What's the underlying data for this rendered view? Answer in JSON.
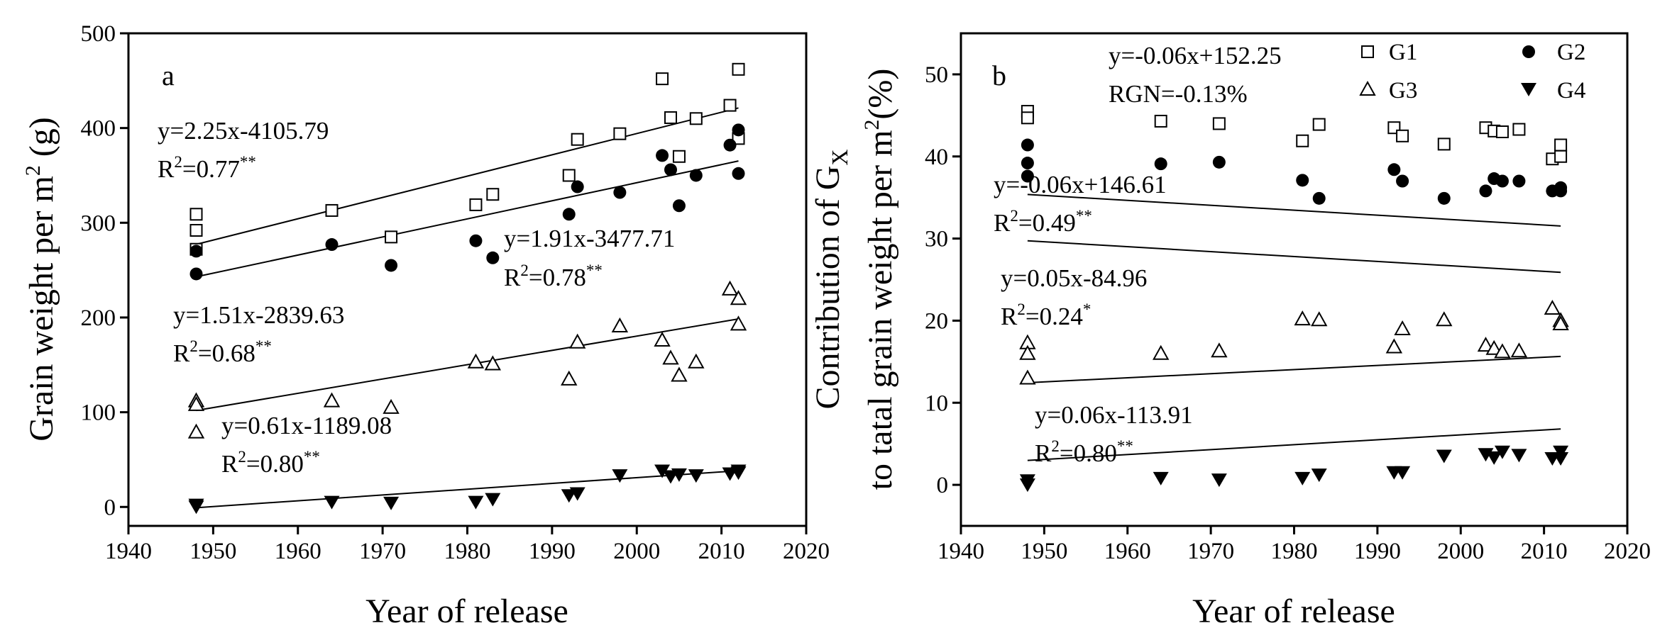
{
  "chart_data": [
    {
      "type": "scatter",
      "panel_label": "a",
      "xlabel": "Year of release",
      "ylabel_pre": "Grain weight per m",
      "ylabel_sup": "2",
      "ylabel_post": " (g)",
      "xlim": [
        1940,
        2020
      ],
      "ylim": [
        -20,
        500
      ],
      "xticks": [
        1940,
        1950,
        1960,
        1970,
        1980,
        1990,
        2000,
        2010,
        2020
      ],
      "yticks": [
        0,
        100,
        200,
        300,
        400,
        500
      ],
      "series": [
        {
          "name": "G1",
          "marker": "open-square",
          "points": [
            [
              1948,
              309
            ],
            [
              1948,
              292
            ],
            [
              1948,
              272
            ],
            [
              1964,
              313
            ],
            [
              1971,
              285
            ],
            [
              1981,
              319
            ],
            [
              1983,
              330
            ],
            [
              1992,
              350
            ],
            [
              1993,
              388
            ],
            [
              1998,
              394
            ],
            [
              2003,
              452
            ],
            [
              2004,
              411
            ],
            [
              2005,
              370
            ],
            [
              2007,
              410
            ],
            [
              2011,
              424
            ],
            [
              2012,
              462
            ],
            [
              2012,
              389
            ]
          ],
          "fit": {
            "slope": 2.25,
            "intercept": -4105.79,
            "x_range": [
              1948,
              2012
            ],
            "equation": "y=2.25x-4105.79",
            "r2_text": "R",
            "r2_sup": "2",
            "r2_value": "=0.77",
            "r2_sig": "**"
          }
        },
        {
          "name": "G2",
          "marker": "filled-circle",
          "points": [
            [
              1948,
              270
            ],
            [
              1948,
              246
            ],
            [
              1964,
              277
            ],
            [
              1971,
              255
            ],
            [
              1981,
              281
            ],
            [
              1983,
              263
            ],
            [
              1992,
              309
            ],
            [
              1993,
              338
            ],
            [
              1998,
              332
            ],
            [
              2003,
              371
            ],
            [
              2004,
              356
            ],
            [
              2005,
              318
            ],
            [
              2007,
              350
            ],
            [
              2011,
              382
            ],
            [
              2012,
              398
            ],
            [
              2012,
              352
            ]
          ],
          "fit": {
            "slope": 1.91,
            "intercept": -3477.71,
            "x_range": [
              1948,
              2012
            ],
            "equation": "y=1.91x-3477.71",
            "r2_text": "R",
            "r2_sup": "2",
            "r2_value": "=0.78",
            "r2_sig": "**"
          }
        },
        {
          "name": "G3",
          "marker": "open-triangle",
          "points": [
            [
              1948,
              112
            ],
            [
              1948,
              108
            ],
            [
              1948,
              79
            ],
            [
              1964,
              112
            ],
            [
              1971,
              105
            ],
            [
              1981,
              153
            ],
            [
              1983,
              151
            ],
            [
              1992,
              135
            ],
            [
              1993,
              174
            ],
            [
              1998,
              191
            ],
            [
              2003,
              176
            ],
            [
              2004,
              157
            ],
            [
              2005,
              139
            ],
            [
              2007,
              153
            ],
            [
              2011,
              230
            ],
            [
              2012,
              220
            ],
            [
              2012,
              193
            ]
          ],
          "fit": {
            "slope": 1.51,
            "intercept": -2839.63,
            "x_range": [
              1948,
              2012
            ],
            "equation": "y=1.51x-2839.63",
            "r2_text": "R",
            "r2_sup": "2",
            "r2_value": "=0.68",
            "r2_sig": "**"
          }
        },
        {
          "name": "G4",
          "marker": "filled-triangle-down",
          "points": [
            [
              1948,
              2
            ],
            [
              1948,
              0
            ],
            [
              1964,
              5
            ],
            [
              1971,
              4
            ],
            [
              1981,
              5
            ],
            [
              1983,
              8
            ],
            [
              1992,
              12
            ],
            [
              1993,
              14
            ],
            [
              1998,
              33
            ],
            [
              2003,
              38
            ],
            [
              2004,
              32
            ],
            [
              2005,
              34
            ],
            [
              2007,
              33
            ],
            [
              2011,
              35
            ],
            [
              2012,
              38
            ],
            [
              2012,
              36
            ]
          ],
          "fit": {
            "slope": 0.61,
            "intercept": -1189.08,
            "x_range": [
              1948,
              2012
            ],
            "equation": "y=0.61x-1189.08",
            "r2_text": "R",
            "r2_sup": "2",
            "r2_value": "=0.80",
            "r2_sig": "**"
          }
        }
      ]
    },
    {
      "type": "scatter",
      "panel_label": "b",
      "xlabel": "Year of release",
      "ylabel_line1_pre": "Contribution of G",
      "ylabel_line1_sub": "X",
      "ylabel_line2_pre": "to tatal grain weight per m",
      "ylabel_line2_sup": "2",
      "ylabel_line2_post": "(%)",
      "xlim": [
        1940,
        2020
      ],
      "ylim": [
        -5,
        55
      ],
      "xticks": [
        1940,
        1950,
        1960,
        1970,
        1980,
        1990,
        2000,
        2010,
        2020
      ],
      "yticks": [
        0,
        10,
        20,
        30,
        40,
        50
      ],
      "legend": [
        {
          "label": "G1",
          "marker": "open-square"
        },
        {
          "label": "G2",
          "marker": "filled-circle"
        },
        {
          "label": "G3",
          "marker": "open-triangle"
        },
        {
          "label": "G4",
          "marker": "filled-triangle-down"
        }
      ],
      "series": [
        {
          "name": "G1",
          "marker": "open-square",
          "points": [
            [
              1948,
              45.5
            ],
            [
              1948,
              44.7
            ],
            [
              1964,
              44.3
            ],
            [
              1971,
              44.0
            ],
            [
              1981,
              41.9
            ],
            [
              1983,
              43.9
            ],
            [
              1992,
              43.5
            ],
            [
              1993,
              42.5
            ],
            [
              1998,
              41.5
            ],
            [
              2003,
              43.5
            ],
            [
              2004,
              43.1
            ],
            [
              2005,
              43.0
            ],
            [
              2007,
              43.3
            ],
            [
              2011,
              39.7
            ],
            [
              2012,
              41.4
            ],
            [
              2012,
              40.0
            ]
          ],
          "fit": {
            "slope": -0.06,
            "intercept": 152.25,
            "x_range": [
              1948,
              2012
            ],
            "equation": "y=-0.06x+152.25",
            "extra_text": "RGN=-0.13%"
          }
        },
        {
          "name": "G2",
          "marker": "filled-circle",
          "points": [
            [
              1948,
              41.4
            ],
            [
              1948,
              39.2
            ],
            [
              1948,
              37.6
            ],
            [
              1964,
              39.1
            ],
            [
              1971,
              39.3
            ],
            [
              1981,
              37.1
            ],
            [
              1983,
              34.9
            ],
            [
              1992,
              38.4
            ],
            [
              1993,
              37.0
            ],
            [
              1998,
              34.9
            ],
            [
              2003,
              35.8
            ],
            [
              2004,
              37.3
            ],
            [
              2005,
              37.0
            ],
            [
              2007,
              37.0
            ],
            [
              2011,
              35.8
            ],
            [
              2012,
              36.2
            ],
            [
              2012,
              35.8
            ]
          ],
          "fit": {
            "slope": -0.06,
            "intercept": 146.61,
            "x_range": [
              1948,
              2012
            ],
            "equation": "y=-0.06x+146.61",
            "r2_text": "R",
            "r2_sup": "2",
            "r2_value": "=0.49",
            "r2_sig": "**"
          }
        },
        {
          "name": "G3",
          "marker": "open-triangle",
          "points": [
            [
              1948,
              17.3
            ],
            [
              1948,
              16.0
            ],
            [
              1948,
              13.0
            ],
            [
              1964,
              16.0
            ],
            [
              1971,
              16.3
            ],
            [
              1981,
              20.2
            ],
            [
              1983,
              20.1
            ],
            [
              1992,
              16.8
            ],
            [
              1993,
              19.0
            ],
            [
              1998,
              20.1
            ],
            [
              2003,
              17.0
            ],
            [
              2004,
              16.6
            ],
            [
              2005,
              16.2
            ],
            [
              2007,
              16.3
            ],
            [
              2011,
              21.5
            ],
            [
              2012,
              20.0
            ],
            [
              2012,
              19.6
            ]
          ],
          "fit": {
            "slope": 0.05,
            "intercept": -84.96,
            "x_range": [
              1948,
              2012
            ],
            "equation": "y=0.05x-84.96",
            "r2_text": "R",
            "r2_sup": "2",
            "r2_value": "=0.24",
            "r2_sig": "*"
          }
        },
        {
          "name": "G4",
          "marker": "filled-triangle-down",
          "points": [
            [
              1948,
              0.5
            ],
            [
              1948,
              0.0
            ],
            [
              1964,
              0.8
            ],
            [
              1971,
              0.6
            ],
            [
              1981,
              0.8
            ],
            [
              1983,
              1.2
            ],
            [
              1992,
              1.5
            ],
            [
              1993,
              1.5
            ],
            [
              1998,
              3.5
            ],
            [
              2003,
              3.7
            ],
            [
              2004,
              3.3
            ],
            [
              2005,
              4.0
            ],
            [
              2007,
              3.6
            ],
            [
              2011,
              3.2
            ],
            [
              2012,
              4.0
            ],
            [
              2012,
              3.2
            ]
          ],
          "fit": {
            "slope": 0.06,
            "intercept": -113.91,
            "x_range": [
              1948,
              2012
            ],
            "equation": "y=0.06x-113.91",
            "r2_text": "R",
            "r2_sup": "2",
            "r2_value": "=0.80",
            "r2_sig": "**"
          }
        }
      ]
    }
  ]
}
